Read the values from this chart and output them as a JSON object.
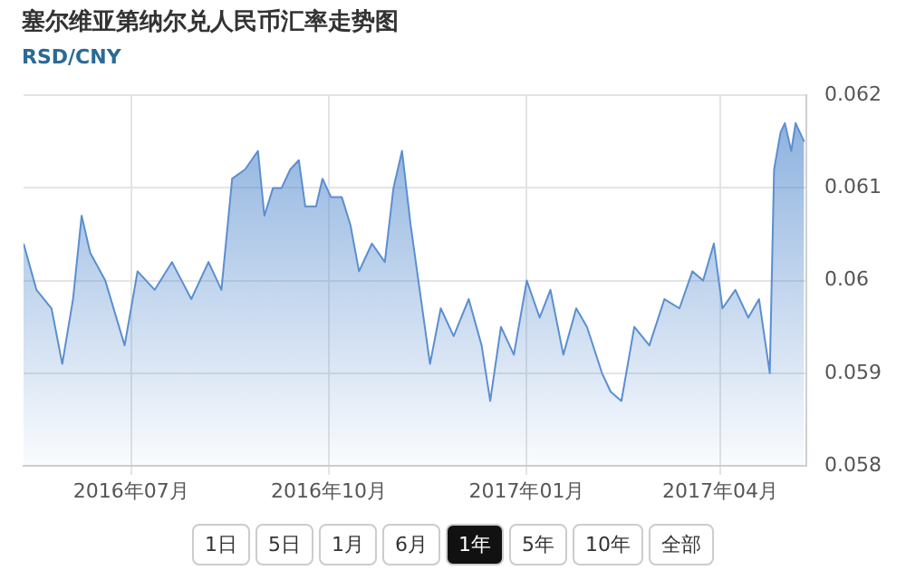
{
  "chart_data": {
    "type": "area",
    "title": "塞尔维亚第纳尔兑人民币汇率走势图",
    "subtitle": "RSD/CNY",
    "x": [
      "2016-05-12",
      "2016-05-18",
      "2016-05-25",
      "2016-05-30",
      "2016-06-04",
      "2016-06-08",
      "2016-06-12",
      "2016-06-19",
      "2016-06-28",
      "2016-07-04",
      "2016-07-12",
      "2016-07-20",
      "2016-07-29",
      "2016-08-06",
      "2016-08-12",
      "2016-08-17",
      "2016-08-23",
      "2016-08-29",
      "2016-09-01",
      "2016-09-05",
      "2016-09-09",
      "2016-09-13",
      "2016-09-17",
      "2016-09-20",
      "2016-09-25",
      "2016-09-28",
      "2016-10-02",
      "2016-10-07",
      "2016-10-11",
      "2016-10-15",
      "2016-10-21",
      "2016-10-27",
      "2016-10-31",
      "2016-11-04",
      "2016-11-08",
      "2016-11-11",
      "2016-11-17",
      "2016-11-22",
      "2016-11-28",
      "2016-12-05",
      "2016-12-11",
      "2016-12-15",
      "2016-12-20",
      "2016-12-26",
      "2017-01-01",
      "2017-01-07",
      "2017-01-12",
      "2017-01-18",
      "2017-01-24",
      "2017-01-29",
      "2017-02-05",
      "2017-02-09",
      "2017-02-14",
      "2017-02-20",
      "2017-02-27",
      "2017-03-06",
      "2017-03-13",
      "2017-03-19",
      "2017-03-24",
      "2017-03-29",
      "2017-04-02",
      "2017-04-08",
      "2017-04-14",
      "2017-04-19",
      "2017-04-24",
      "2017-04-26",
      "2017-04-29",
      "2017-05-01",
      "2017-05-04",
      "2017-05-06",
      "2017-05-10"
    ],
    "series": [
      {
        "color": "#5b8fd0",
        "values": [
          0.0604,
          0.0599,
          0.0597,
          0.0591,
          0.0598,
          0.0607,
          0.0603,
          0.06,
          0.0593,
          0.0601,
          0.0599,
          0.0602,
          0.0598,
          0.0602,
          0.0599,
          0.0611,
          0.0612,
          0.0614,
          0.0607,
          0.061,
          0.061,
          0.0612,
          0.0613,
          0.0608,
          0.0608,
          0.0611,
          0.0609,
          0.0609,
          0.0606,
          0.0601,
          0.0604,
          0.0602,
          0.061,
          0.0614,
          0.0606,
          0.0601,
          0.0591,
          0.0597,
          0.0594,
          0.0598,
          0.0593,
          0.0587,
          0.0595,
          0.0592,
          0.06,
          0.0596,
          0.0599,
          0.0592,
          0.0597,
          0.0595,
          0.059,
          0.0588,
          0.0587,
          0.0595,
          0.0593,
          0.0598,
          0.0597,
          0.0601,
          0.06,
          0.0604,
          0.0597,
          0.0599,
          0.0596,
          0.0598,
          0.059,
          0.0612,
          0.0616,
          0.0617,
          0.0614,
          0.0617,
          0.0615
        ]
      }
    ],
    "xlim": [
      "2016-05-12",
      "2017-05-11"
    ],
    "xticks": [
      {
        "value": "2016-07",
        "label": "2016年07月"
      },
      {
        "value": "2016-10",
        "label": "2016年10月"
      },
      {
        "value": "2017-01",
        "label": "2017年01月"
      },
      {
        "value": "2017-04",
        "label": "2017年04月"
      }
    ],
    "ylim": [
      0.058,
      0.062
    ],
    "yticks": [
      0.058,
      0.059,
      0.06,
      0.061,
      0.062
    ],
    "grid": true,
    "annotations": [
      "1日",
      "5日",
      "1月",
      "6月",
      "1年",
      "5年",
      "10年",
      "全部"
    ]
  }
}
